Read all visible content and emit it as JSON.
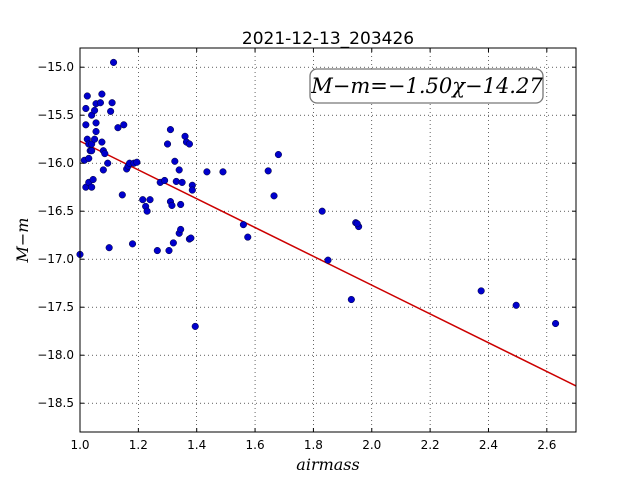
{
  "chart_data": {
    "type": "scatter",
    "title": "2021-12-13_203426",
    "xlabel": "airmass",
    "ylabel": "M−m",
    "xlim": [
      1.0,
      2.7
    ],
    "ylim": [
      -18.8,
      -14.8
    ],
    "xticks": [
      1.0,
      1.2,
      1.4,
      1.6,
      1.8,
      2.0,
      2.2,
      2.4,
      2.6
    ],
    "xtick_labels": [
      "1.0",
      "1.2",
      "1.4",
      "1.6",
      "1.8",
      "2.0",
      "2.2",
      "2.4",
      "2.6"
    ],
    "yticks": [
      -15.0,
      -15.5,
      -16.0,
      -16.5,
      -17.0,
      -17.5,
      -18.0,
      -18.5
    ],
    "ytick_labels": [
      "−15.0",
      "−15.5",
      "−16.0",
      "−16.5",
      "−17.0",
      "−17.5",
      "−18.0",
      "−18.5"
    ],
    "grid": true,
    "annotation": "M−m=−1.50χ−14.27",
    "fit": {
      "slope": -1.5,
      "intercept": -14.27,
      "color": "#cc0000"
    },
    "point_color": "#0000cc",
    "points": [
      [
        1.0,
        -16.95
      ],
      [
        1.015,
        -15.97
      ],
      [
        1.02,
        -15.6
      ],
      [
        1.02,
        -15.43
      ],
      [
        1.025,
        -15.3
      ],
      [
        1.025,
        -15.75
      ],
      [
        1.03,
        -15.8
      ],
      [
        1.03,
        -15.95
      ],
      [
        1.035,
        -15.87
      ],
      [
        1.04,
        -15.8
      ],
      [
        1.04,
        -15.5
      ],
      [
        1.04,
        -15.87
      ],
      [
        1.02,
        -16.25
      ],
      [
        1.03,
        -16.2
      ],
      [
        1.04,
        -16.25
      ],
      [
        1.045,
        -16.17
      ],
      [
        1.05,
        -15.75
      ],
      [
        1.05,
        -15.45
      ],
      [
        1.055,
        -15.38
      ],
      [
        1.055,
        -15.58
      ],
      [
        1.055,
        -15.67
      ],
      [
        1.07,
        -15.37
      ],
      [
        1.075,
        -15.28
      ],
      [
        1.075,
        -15.78
      ],
      [
        1.08,
        -15.87
      ],
      [
        1.08,
        -16.07
      ],
      [
        1.085,
        -15.9
      ],
      [
        1.095,
        -16.0
      ],
      [
        1.1,
        -16.88
      ],
      [
        1.105,
        -15.46
      ],
      [
        1.11,
        -15.37
      ],
      [
        1.115,
        -14.95
      ],
      [
        1.13,
        -15.63
      ],
      [
        1.145,
        -16.33
      ],
      [
        1.15,
        -15.6
      ],
      [
        1.16,
        -16.06
      ],
      [
        1.165,
        -16.03
      ],
      [
        1.17,
        -16.0
      ],
      [
        1.18,
        -16.84
      ],
      [
        1.185,
        -16.0
      ],
      [
        1.195,
        -15.99
      ],
      [
        1.215,
        -16.38
      ],
      [
        1.225,
        -16.45
      ],
      [
        1.23,
        -16.5
      ],
      [
        1.24,
        -16.38
      ],
      [
        1.265,
        -16.91
      ],
      [
        1.275,
        -16.2
      ],
      [
        1.29,
        -16.18
      ],
      [
        1.3,
        -15.8
      ],
      [
        1.305,
        -16.91
      ],
      [
        1.31,
        -15.65
      ],
      [
        1.31,
        -16.4
      ],
      [
        1.315,
        -16.44
      ],
      [
        1.32,
        -16.83
      ],
      [
        1.325,
        -15.98
      ],
      [
        1.33,
        -16.19
      ],
      [
        1.34,
        -16.07
      ],
      [
        1.34,
        -16.73
      ],
      [
        1.345,
        -16.69
      ],
      [
        1.345,
        -16.43
      ],
      [
        1.35,
        -16.2
      ],
      [
        1.36,
        -15.72
      ],
      [
        1.365,
        -15.78
      ],
      [
        1.375,
        -16.79
      ],
      [
        1.375,
        -15.8
      ],
      [
        1.38,
        -16.78
      ],
      [
        1.385,
        -16.23
      ],
      [
        1.385,
        -16.28
      ],
      [
        1.395,
        -17.7
      ],
      [
        1.435,
        -16.09
      ],
      [
        1.49,
        -16.09
      ],
      [
        1.56,
        -16.64
      ],
      [
        1.575,
        -16.77
      ],
      [
        1.645,
        -16.08
      ],
      [
        1.665,
        -16.34
      ],
      [
        1.68,
        -15.91
      ],
      [
        1.83,
        -16.5
      ],
      [
        1.85,
        -17.01
      ],
      [
        1.93,
        -17.42
      ],
      [
        1.945,
        -16.62
      ],
      [
        1.955,
        -16.66
      ],
      [
        1.95,
        -16.63
      ],
      [
        2.375,
        -17.33
      ],
      [
        2.495,
        -17.48
      ],
      [
        2.63,
        -17.67
      ]
    ]
  }
}
